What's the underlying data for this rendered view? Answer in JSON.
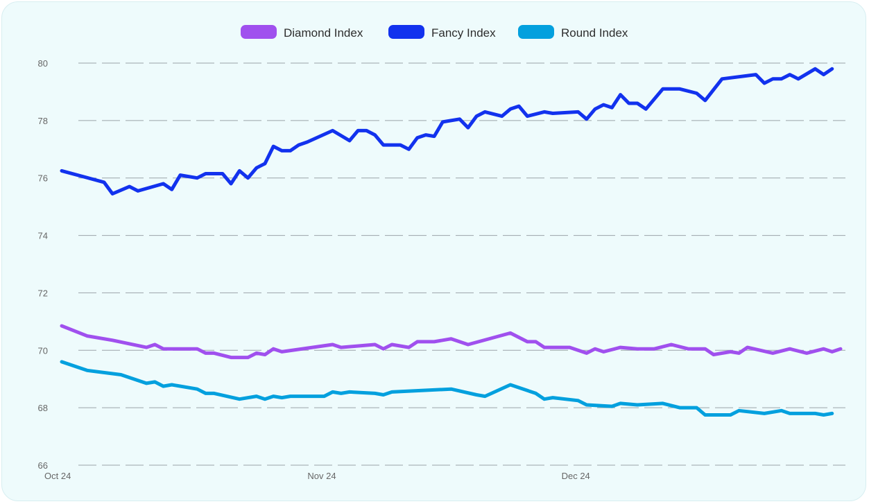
{
  "chart_data": {
    "type": "line",
    "title": "",
    "xlabel": "",
    "ylabel": "",
    "ylim": [
      66,
      80
    ],
    "grid": true,
    "legend_position": "top-center",
    "y_ticks": [
      66,
      68,
      70,
      72,
      74,
      76,
      78,
      80
    ],
    "x_ticks": [
      {
        "x": 0,
        "label": "Oct 24"
      },
      {
        "x": 31,
        "label": "Nov 24"
      },
      {
        "x": 61,
        "label": "Dec 24"
      }
    ],
    "x_range": [
      0,
      92
    ],
    "series": [
      {
        "name": "Diamond Index",
        "color": "#a050ee",
        "points": [
          [
            0,
            70.85
          ],
          [
            3,
            70.5
          ],
          [
            6,
            70.35
          ],
          [
            10,
            70.1
          ],
          [
            11,
            70.2
          ],
          [
            12,
            70.05
          ],
          [
            14,
            70.05
          ],
          [
            16,
            70.05
          ],
          [
            17,
            69.9
          ],
          [
            18,
            69.9
          ],
          [
            20,
            69.75
          ],
          [
            22,
            69.75
          ],
          [
            23,
            69.9
          ],
          [
            24,
            69.85
          ],
          [
            25,
            70.05
          ],
          [
            26,
            69.95
          ],
          [
            32,
            70.2
          ],
          [
            33,
            70.1
          ],
          [
            37,
            70.2
          ],
          [
            38,
            70.05
          ],
          [
            39,
            70.2
          ],
          [
            41,
            70.1
          ],
          [
            42,
            70.3
          ],
          [
            44,
            70.3
          ],
          [
            46,
            70.4
          ],
          [
            48,
            70.2
          ],
          [
            53,
            70.6
          ],
          [
            55,
            70.3
          ],
          [
            56,
            70.3
          ],
          [
            57,
            70.1
          ],
          [
            60,
            70.1
          ],
          [
            62,
            69.9
          ],
          [
            63,
            70.05
          ],
          [
            64,
            69.95
          ],
          [
            66,
            70.1
          ],
          [
            68,
            70.05
          ],
          [
            70,
            70.05
          ],
          [
            72,
            70.2
          ],
          [
            74,
            70.05
          ],
          [
            76,
            70.05
          ],
          [
            77,
            69.85
          ],
          [
            79,
            69.95
          ],
          [
            80,
            69.9
          ],
          [
            81,
            70.1
          ],
          [
            84,
            69.9
          ],
          [
            86,
            70.05
          ],
          [
            88,
            69.9
          ],
          [
            90,
            70.05
          ],
          [
            91,
            69.95
          ],
          [
            92,
            70.05
          ]
        ]
      },
      {
        "name": "Fancy Index",
        "color": "#1232ee",
        "points": [
          [
            0,
            76.25
          ],
          [
            5,
            75.85
          ],
          [
            6,
            75.45
          ],
          [
            8,
            75.7
          ],
          [
            9,
            75.55
          ],
          [
            12,
            75.8
          ],
          [
            13,
            75.6
          ],
          [
            14,
            76.1
          ],
          [
            16,
            76.0
          ],
          [
            17,
            76.15
          ],
          [
            19,
            76.15
          ],
          [
            20,
            75.8
          ],
          [
            21,
            76.25
          ],
          [
            22,
            76.0
          ],
          [
            23,
            76.35
          ],
          [
            24,
            76.5
          ],
          [
            25,
            77.1
          ],
          [
            26,
            76.95
          ],
          [
            27,
            76.95
          ],
          [
            28,
            77.15
          ],
          [
            29,
            77.25
          ],
          [
            32,
            77.65
          ],
          [
            34,
            77.3
          ],
          [
            35,
            77.65
          ],
          [
            36,
            77.65
          ],
          [
            37,
            77.5
          ],
          [
            38,
            77.15
          ],
          [
            40,
            77.15
          ],
          [
            41,
            77.0
          ],
          [
            42,
            77.4
          ],
          [
            43,
            77.5
          ],
          [
            44,
            77.45
          ],
          [
            45,
            77.95
          ],
          [
            47,
            78.05
          ],
          [
            48,
            77.75
          ],
          [
            49,
            78.15
          ],
          [
            50,
            78.3
          ],
          [
            52,
            78.15
          ],
          [
            53,
            78.4
          ],
          [
            54,
            78.5
          ],
          [
            55,
            78.15
          ],
          [
            57,
            78.3
          ],
          [
            58,
            78.25
          ],
          [
            61,
            78.3
          ],
          [
            62,
            78.05
          ],
          [
            63,
            78.4
          ],
          [
            64,
            78.55
          ],
          [
            65,
            78.45
          ],
          [
            66,
            78.9
          ],
          [
            67,
            78.6
          ],
          [
            68,
            78.6
          ],
          [
            69,
            78.4
          ],
          [
            71,
            79.1
          ],
          [
            73,
            79.1
          ],
          [
            75,
            78.95
          ],
          [
            76,
            78.7
          ],
          [
            78,
            79.45
          ],
          [
            82,
            79.6
          ],
          [
            83,
            79.3
          ],
          [
            84,
            79.45
          ],
          [
            85,
            79.45
          ],
          [
            86,
            79.6
          ],
          [
            87,
            79.45
          ],
          [
            89,
            79.8
          ],
          [
            90,
            79.6
          ],
          [
            91,
            79.8
          ]
        ]
      },
      {
        "name": "Round Index",
        "color": "#03a0de",
        "points": [
          [
            0,
            69.6
          ],
          [
            3,
            69.3
          ],
          [
            7,
            69.15
          ],
          [
            10,
            68.85
          ],
          [
            11,
            68.9
          ],
          [
            12,
            68.75
          ],
          [
            13,
            68.8
          ],
          [
            16,
            68.65
          ],
          [
            17,
            68.5
          ],
          [
            18,
            68.5
          ],
          [
            21,
            68.3
          ],
          [
            23,
            68.4
          ],
          [
            24,
            68.3
          ],
          [
            25,
            68.4
          ],
          [
            26,
            68.35
          ],
          [
            27,
            68.4
          ],
          [
            31,
            68.4
          ],
          [
            32,
            68.55
          ],
          [
            33,
            68.5
          ],
          [
            34,
            68.55
          ],
          [
            37,
            68.5
          ],
          [
            38,
            68.45
          ],
          [
            39,
            68.55
          ],
          [
            46,
            68.65
          ],
          [
            49,
            68.45
          ],
          [
            50,
            68.4
          ],
          [
            53,
            68.8
          ],
          [
            55,
            68.6
          ],
          [
            56,
            68.5
          ],
          [
            57,
            68.3
          ],
          [
            58,
            68.35
          ],
          [
            61,
            68.25
          ],
          [
            62,
            68.1
          ],
          [
            65,
            68.05
          ],
          [
            66,
            68.15
          ],
          [
            68,
            68.1
          ],
          [
            71,
            68.15
          ],
          [
            73,
            68.0
          ],
          [
            75,
            68.0
          ],
          [
            76,
            67.75
          ],
          [
            79,
            67.75
          ],
          [
            80,
            67.9
          ],
          [
            83,
            67.8
          ],
          [
            85,
            67.9
          ],
          [
            86,
            67.8
          ],
          [
            89,
            67.8
          ],
          [
            90,
            67.75
          ],
          [
            91,
            67.8
          ]
        ]
      }
    ]
  }
}
